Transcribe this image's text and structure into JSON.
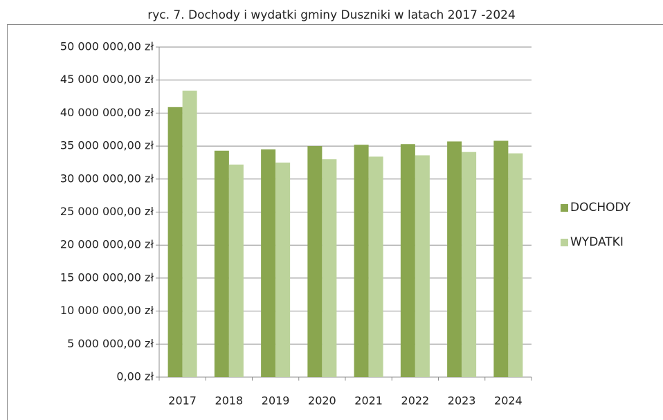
{
  "chart_data": {
    "type": "bar",
    "title": "ryc. 7.  Dochody i wydatki gminy Duszniki w latach 2017 -2024",
    "categories": [
      "2017",
      "2018",
      "2019",
      "2020",
      "2021",
      "2022",
      "2023",
      "2024"
    ],
    "series": [
      {
        "name": "DOCHODY",
        "color": "#8aa64f",
        "values": [
          40900000,
          34300000,
          34500000,
          35000000,
          35200000,
          35300000,
          35700000,
          35800000
        ]
      },
      {
        "name": "WYDATKI",
        "color": "#bcd39b",
        "values": [
          43400000,
          32200000,
          32500000,
          33000000,
          33400000,
          33600000,
          34100000,
          33900000
        ]
      }
    ],
    "ylim": [
      0,
      50000000
    ],
    "yticks": [
      {
        "value": 0,
        "label": "0,00 zł"
      },
      {
        "value": 5000000,
        "label": "5 000 000,00 zł"
      },
      {
        "value": 10000000,
        "label": "10 000 000,00 zł"
      },
      {
        "value": 15000000,
        "label": "15 000 000,00 zł"
      },
      {
        "value": 20000000,
        "label": "20 000 000,00 zł"
      },
      {
        "value": 25000000,
        "label": "25 000 000,00 zł"
      },
      {
        "value": 30000000,
        "label": "30 000 000,00 zł"
      },
      {
        "value": 35000000,
        "label": "35 000 000,00 zł"
      },
      {
        "value": 40000000,
        "label": "40 000 000,00 zł"
      },
      {
        "value": 45000000,
        "label": "45 000 000,00 zł"
      },
      {
        "value": 50000000,
        "label": "50 000 000,00 zł"
      }
    ],
    "grid": true,
    "legend": "right"
  }
}
